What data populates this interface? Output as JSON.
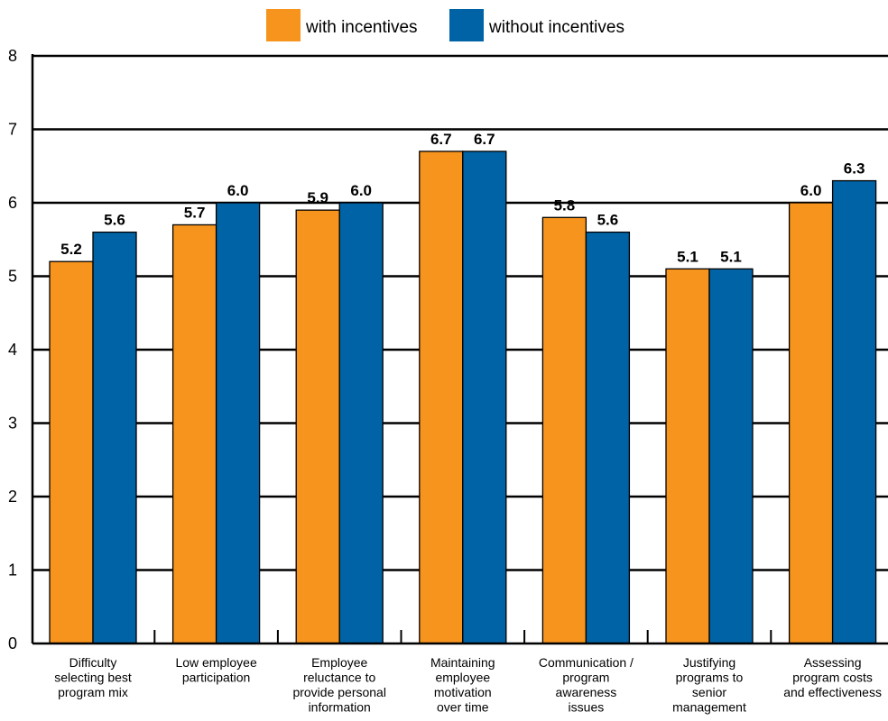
{
  "chart_data": {
    "type": "bar",
    "categories": [
      [
        "Difficulty",
        "selecting best",
        "program mix"
      ],
      [
        "Low employee",
        "participation"
      ],
      [
        "Employee",
        "reluctance to",
        "provide personal",
        "information"
      ],
      [
        "Maintaining",
        "employee",
        "motivation",
        "over time"
      ],
      [
        "Communication /",
        "program",
        "awareness",
        "issues"
      ],
      [
        "Justifying",
        "programs to",
        "senior",
        "management"
      ],
      [
        "Assessing",
        "program costs",
        "and effectiveness"
      ]
    ],
    "series": [
      {
        "name": "with incentives",
        "color": "#F7941D",
        "values": [
          5.2,
          5.7,
          5.9,
          6.7,
          5.8,
          5.1,
          6.0
        ]
      },
      {
        "name": "without incentives",
        "color": "#0063A6",
        "values": [
          5.6,
          6.0,
          6.0,
          6.7,
          5.6,
          5.1,
          6.3
        ]
      }
    ],
    "data_labels": [
      [
        "5.2",
        "5.7",
        "5.9",
        "6.7",
        "5.8",
        "5.1",
        "6.0"
      ],
      [
        "5.6",
        "6.0",
        "6.0",
        "6.7",
        "5.6",
        "5.1",
        "6.3"
      ]
    ],
    "yticks": [
      "0",
      "1",
      "2",
      "3",
      "4",
      "5",
      "6",
      "7",
      "8"
    ],
    "ylim": [
      0,
      8
    ],
    "grid": true,
    "legend_position": "top-center",
    "title": "",
    "xlabel": "",
    "ylabel": ""
  }
}
